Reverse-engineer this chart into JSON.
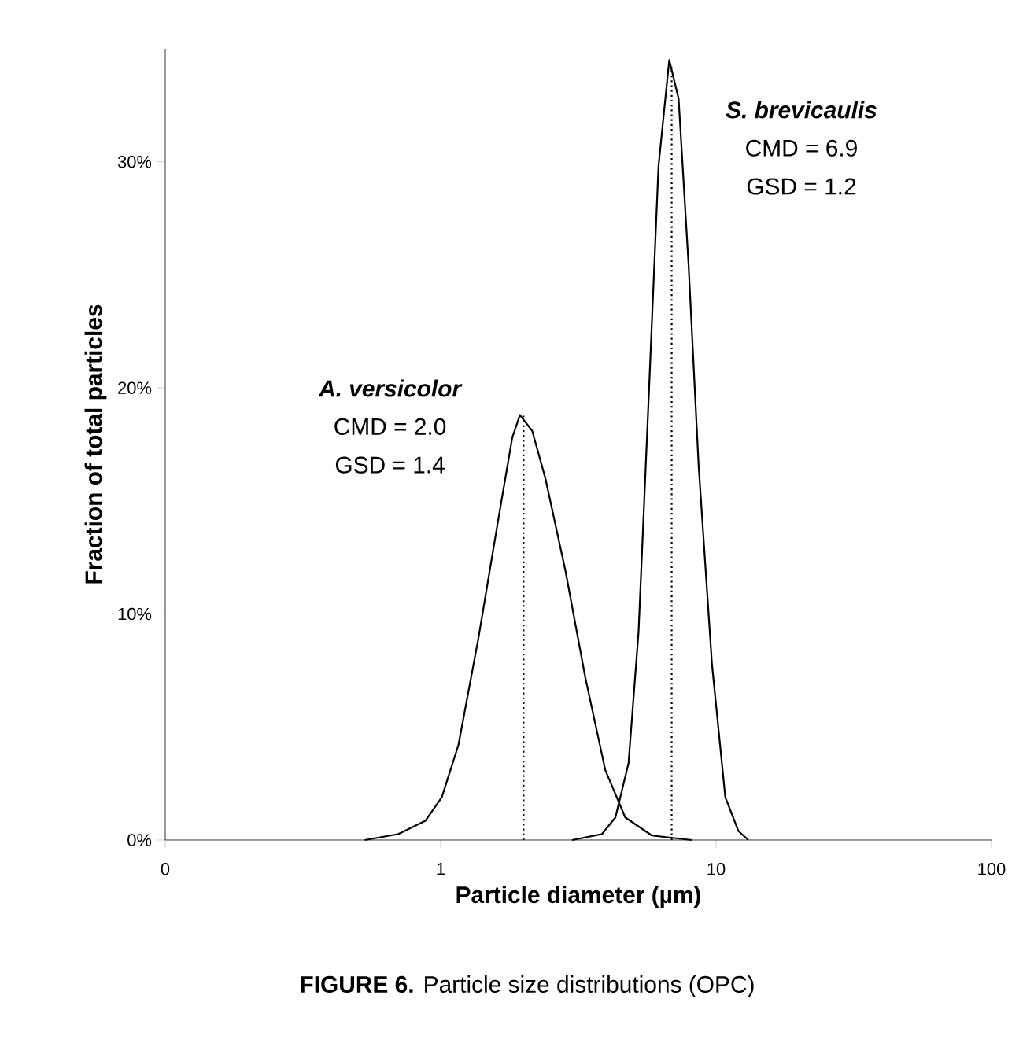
{
  "chart_data": {
    "type": "line",
    "title": "**FIGURE 6.** Particle size distributions (OPC)",
    "xlabel": "Particle diameter (µm)",
    "ylabel": "Fraction of total particles",
    "log": "x",
    "xlim": [
      0.1,
      100
    ],
    "ylim": [
      0,
      35
    ],
    "xticks": [
      {
        "value": 0.1,
        "label": "0"
      },
      {
        "value": 1,
        "label": "1"
      },
      {
        "value": 10,
        "label": "10"
      },
      {
        "value": 100,
        "label": "100"
      }
    ],
    "yticks": [
      {
        "value": 0,
        "label": "0%"
      },
      {
        "value": 10,
        "label": "10%"
      },
      {
        "value": 20,
        "label": "20%"
      },
      {
        "value": 30,
        "label": "30%"
      }
    ],
    "series": [
      {
        "color": "#000000",
        "x": [
          0.53,
          0.7,
          0.88,
          1.01,
          1.16,
          1.37,
          1.62,
          1.82,
          1.94,
          2.15,
          2.4,
          2.84,
          3.35,
          3.96,
          4.68,
          5.85,
          8.17
        ],
        "values": [
          0,
          0.26,
          0.85,
          1.9,
          4.2,
          8.9,
          14.2,
          17.8,
          18.8,
          18.1,
          16.0,
          11.9,
          7.2,
          3.1,
          1.0,
          0.2,
          0
        ]
      },
      {
        "color": "#000000",
        "x": [
          3.0,
          3.85,
          4.31,
          4.81,
          5.23,
          5.69,
          6.18,
          6.76,
          7.31,
          7.95,
          8.64,
          9.66,
          10.8,
          12.05,
          13.1
        ],
        "values": [
          0,
          0.26,
          1.0,
          3.4,
          9.2,
          19.5,
          29.8,
          34.5,
          32.8,
          25.4,
          16.6,
          7.8,
          1.9,
          0.4,
          0
        ]
      },
      {
        "color": "#000000",
        "line_style": "dotted",
        "x": [
          2.0,
          2.0
        ],
        "values": [
          0,
          18.8
        ]
      },
      {
        "color": "#000000",
        "line_style": "dotted",
        "x": [
          6.9,
          6.9
        ],
        "values": [
          0,
          34.2
        ]
      }
    ],
    "annotations": [
      "A. versicolor",
      "CMD = 2.0",
      "GSD = 1.4",
      "S. brevicaulis",
      "CMD = 6.9",
      "GSD = 1.2"
    ]
  }
}
